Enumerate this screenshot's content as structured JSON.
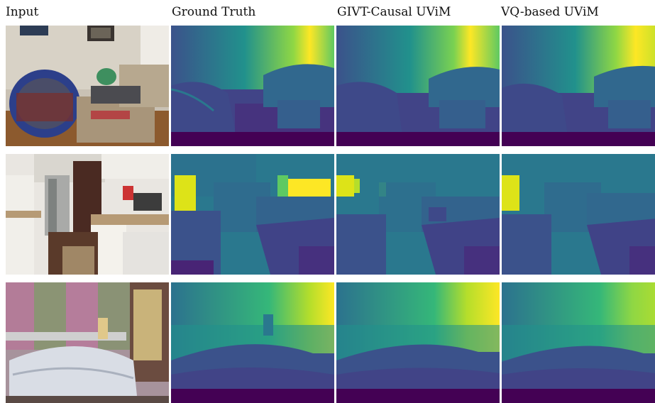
{
  "columns": [
    {
      "id": "input",
      "label": "Input"
    },
    {
      "id": "ground_truth",
      "label": "Ground Truth"
    },
    {
      "id": "givt",
      "label": "GIVT-Causal UViM"
    },
    {
      "id": "vq",
      "label": "VQ-based UViM"
    }
  ],
  "rows": [
    {
      "scene": "living-room-chairs"
    },
    {
      "scene": "kitchen"
    },
    {
      "scene": "bedroom"
    }
  ],
  "colors": {
    "depth_near": "#440154",
    "depth_mid_low": "#3b528b",
    "depth_mid": "#21918c",
    "depth_mid_high": "#5ec962",
    "depth_far": "#fde725"
  }
}
